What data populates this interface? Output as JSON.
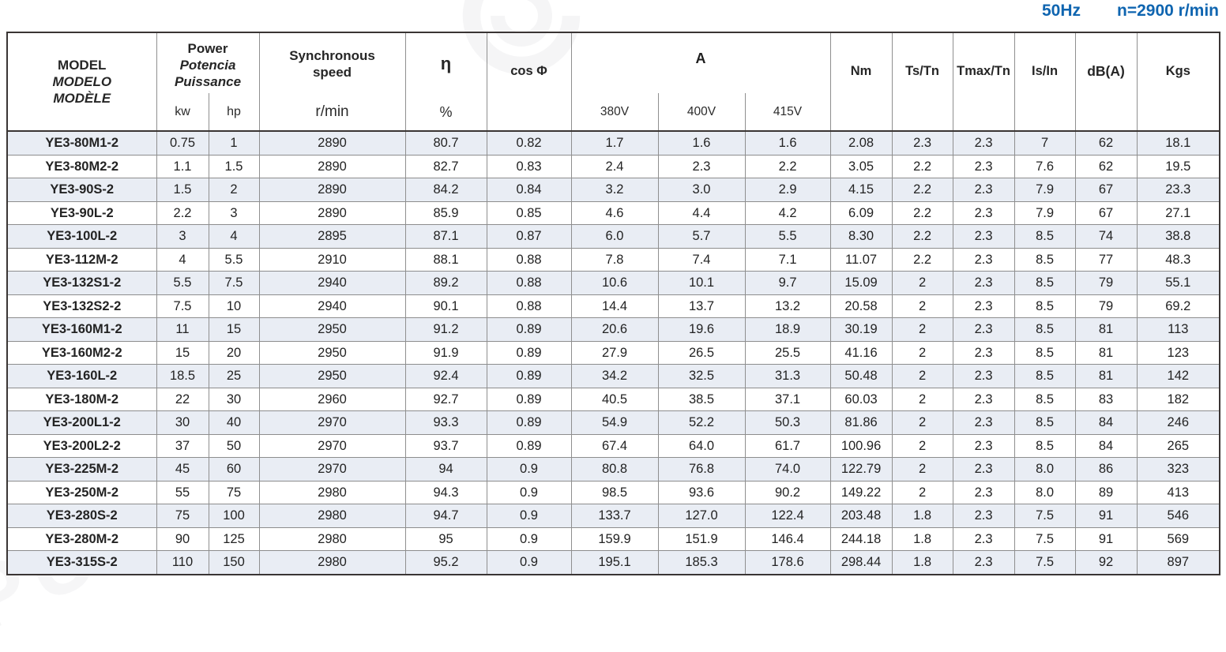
{
  "title": {
    "frequency": "50Hz",
    "speed": "n=2900 r/min"
  },
  "colors": {
    "accent": "#0f65b0",
    "stripe": "#e9edf4",
    "grid": "#8f8f8f",
    "frame": "#3a3534"
  },
  "watermark": {
    "text": "PURITY",
    "logo": "swirl-logo"
  },
  "table": {
    "header": {
      "model_lines": [
        "MODEL",
        "MODELO",
        "MODÈLE"
      ],
      "power_lines": [
        "Power",
        "Potencia",
        "Puissance"
      ],
      "power_units": [
        "kw",
        "hp"
      ],
      "sync_lines": [
        "Synchronous",
        "speed"
      ],
      "sync_unit": "r/min",
      "eta": "η",
      "eta_unit": "%",
      "cos_phi": "cos Φ",
      "current": "A",
      "voltages": [
        "380V",
        "400V",
        "415V"
      ],
      "nm": "Nm",
      "ts_tn": "Ts/Tn",
      "tmax_tn": "Tmax/Tn",
      "is_in": "Is/In",
      "dba": "dB(A)",
      "kgs": "Kgs"
    },
    "rows": [
      [
        "YE3-80M1-2",
        "0.75",
        "1",
        "2890",
        "80.7",
        "0.82",
        "1.7",
        "1.6",
        "1.6",
        "2.08",
        "2.3",
        "2.3",
        "7",
        "62",
        "18.1"
      ],
      [
        "YE3-80M2-2",
        "1.1",
        "1.5",
        "2890",
        "82.7",
        "0.83",
        "2.4",
        "2.3",
        "2.2",
        "3.05",
        "2.2",
        "2.3",
        "7.6",
        "62",
        "19.5"
      ],
      [
        "YE3-90S-2",
        "1.5",
        "2",
        "2890",
        "84.2",
        "0.84",
        "3.2",
        "3.0",
        "2.9",
        "4.15",
        "2.2",
        "2.3",
        "7.9",
        "67",
        "23.3"
      ],
      [
        "YE3-90L-2",
        "2.2",
        "3",
        "2890",
        "85.9",
        "0.85",
        "4.6",
        "4.4",
        "4.2",
        "6.09",
        "2.2",
        "2.3",
        "7.9",
        "67",
        "27.1"
      ],
      [
        "YE3-100L-2",
        "3",
        "4",
        "2895",
        "87.1",
        "0.87",
        "6.0",
        "5.7",
        "5.5",
        "8.30",
        "2.2",
        "2.3",
        "8.5",
        "74",
        "38.8"
      ],
      [
        "YE3-112M-2",
        "4",
        "5.5",
        "2910",
        "88.1",
        "0.88",
        "7.8",
        "7.4",
        "7.1",
        "11.07",
        "2.2",
        "2.3",
        "8.5",
        "77",
        "48.3"
      ],
      [
        "YE3-132S1-2",
        "5.5",
        "7.5",
        "2940",
        "89.2",
        "0.88",
        "10.6",
        "10.1",
        "9.7",
        "15.09",
        "2",
        "2.3",
        "8.5",
        "79",
        "55.1"
      ],
      [
        "YE3-132S2-2",
        "7.5",
        "10",
        "2940",
        "90.1",
        "0.88",
        "14.4",
        "13.7",
        "13.2",
        "20.58",
        "2",
        "2.3",
        "8.5",
        "79",
        "69.2"
      ],
      [
        "YE3-160M1-2",
        "11",
        "15",
        "2950",
        "91.2",
        "0.89",
        "20.6",
        "19.6",
        "18.9",
        "30.19",
        "2",
        "2.3",
        "8.5",
        "81",
        "113"
      ],
      [
        "YE3-160M2-2",
        "15",
        "20",
        "2950",
        "91.9",
        "0.89",
        "27.9",
        "26.5",
        "25.5",
        "41.16",
        "2",
        "2.3",
        "8.5",
        "81",
        "123"
      ],
      [
        "YE3-160L-2",
        "18.5",
        "25",
        "2950",
        "92.4",
        "0.89",
        "34.2",
        "32.5",
        "31.3",
        "50.48",
        "2",
        "2.3",
        "8.5",
        "81",
        "142"
      ],
      [
        "YE3-180M-2",
        "22",
        "30",
        "2960",
        "92.7",
        "0.89",
        "40.5",
        "38.5",
        "37.1",
        "60.03",
        "2",
        "2.3",
        "8.5",
        "83",
        "182"
      ],
      [
        "YE3-200L1-2",
        "30",
        "40",
        "2970",
        "93.3",
        "0.89",
        "54.9",
        "52.2",
        "50.3",
        "81.86",
        "2",
        "2.3",
        "8.5",
        "84",
        "246"
      ],
      [
        "YE3-200L2-2",
        "37",
        "50",
        "2970",
        "93.7",
        "0.89",
        "67.4",
        "64.0",
        "61.7",
        "100.96",
        "2",
        "2.3",
        "8.5",
        "84",
        "265"
      ],
      [
        "YE3-225M-2",
        "45",
        "60",
        "2970",
        "94",
        "0.9",
        "80.8",
        "76.8",
        "74.0",
        "122.79",
        "2",
        "2.3",
        "8.0",
        "86",
        "323"
      ],
      [
        "YE3-250M-2",
        "55",
        "75",
        "2980",
        "94.3",
        "0.9",
        "98.5",
        "93.6",
        "90.2",
        "149.22",
        "2",
        "2.3",
        "8.0",
        "89",
        "413"
      ],
      [
        "YE3-280S-2",
        "75",
        "100",
        "2980",
        "94.7",
        "0.9",
        "133.7",
        "127.0",
        "122.4",
        "203.48",
        "1.8",
        "2.3",
        "7.5",
        "91",
        "546"
      ],
      [
        "YE3-280M-2",
        "90",
        "125",
        "2980",
        "95",
        "0.9",
        "159.9",
        "151.9",
        "146.4",
        "244.18",
        "1.8",
        "2.3",
        "7.5",
        "91",
        "569"
      ],
      [
        "YE3-315S-2",
        "110",
        "150",
        "2980",
        "95.2",
        "0.9",
        "195.1",
        "185.3",
        "178.6",
        "298.44",
        "1.8",
        "2.3",
        "7.5",
        "92",
        "897"
      ]
    ]
  }
}
